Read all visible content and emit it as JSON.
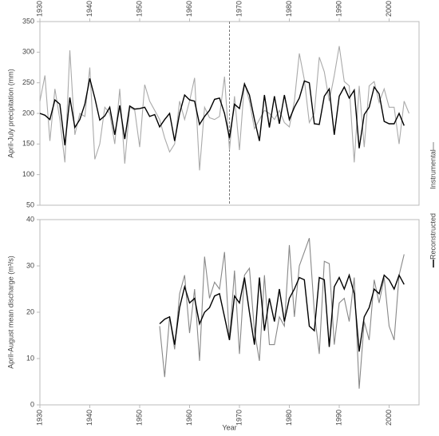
{
  "chart_data": [
    {
      "type": "line",
      "ylabel": "April-July precipitation (mm)",
      "x_label_position": "top",
      "ylim": [
        50,
        350
      ],
      "yticks": [
        50,
        100,
        150,
        200,
        250,
        300,
        350
      ],
      "xlim": [
        1930,
        2006
      ],
      "xticks": [
        1930,
        1940,
        1950,
        1960,
        1970,
        1980,
        1990,
        2000
      ],
      "vline": 1968,
      "series": [
        {
          "name": "Reconstructed",
          "color": "#000000",
          "x": [
            1930,
            1931,
            1932,
            1933,
            1934,
            1935,
            1936,
            1937,
            1938,
            1939,
            1940,
            1941,
            1942,
            1943,
            1944,
            1945,
            1946,
            1947,
            1948,
            1949,
            1950,
            1951,
            1952,
            1953,
            1954,
            1955,
            1956,
            1957,
            1958,
            1959,
            1960,
            1961,
            1962,
            1963,
            1964,
            1965,
            1966,
            1967,
            1968,
            1969,
            1970,
            1971,
            1972,
            1973,
            1974,
            1975,
            1976,
            1977,
            1978,
            1979,
            1980,
            1981,
            1982,
            1983,
            1984,
            1985,
            1986,
            1987,
            1988,
            1989,
            1990,
            1991,
            1992,
            1993,
            1994,
            1995,
            1996,
            1997,
            1998,
            1999,
            2000,
            2001,
            2002,
            2003
          ],
          "values": [
            200,
            197,
            190,
            222,
            215,
            148,
            226,
            177,
            190,
            215,
            257,
            225,
            189,
            196,
            210,
            165,
            213,
            158,
            212,
            207,
            208,
            210,
            195,
            198,
            178,
            190,
            200,
            155,
            200,
            230,
            222,
            220,
            182,
            195,
            205,
            223,
            225,
            200,
            160,
            215,
            208,
            248,
            230,
            190,
            155,
            230,
            177,
            228,
            183,
            230,
            190,
            210,
            225,
            253,
            250,
            183,
            182,
            228,
            240,
            165,
            228,
            243,
            225,
            238,
            143,
            198,
            210,
            243,
            232,
            187,
            183,
            183,
            200,
            180
          ]
        },
        {
          "name": "Instrumental",
          "color": "#aaaaaa",
          "x": [
            1930,
            1931,
            1932,
            1933,
            1934,
            1935,
            1936,
            1937,
            1938,
            1939,
            1940,
            1941,
            1942,
            1943,
            1944,
            1945,
            1946,
            1947,
            1948,
            1949,
            1950,
            1951,
            1952,
            1953,
            1954,
            1955,
            1956,
            1957,
            1958,
            1959,
            1960,
            1961,
            1962,
            1963,
            1964,
            1965,
            1966,
            1967,
            1968,
            1969,
            1970,
            1971,
            1972,
            1973,
            1974,
            1975,
            1976,
            1977,
            1978,
            1979,
            1980,
            1981,
            1982,
            1983,
            1984,
            1985,
            1986,
            1987,
            1988,
            1989,
            1990,
            1991,
            1992,
            1993,
            1994,
            1995,
            1996,
            1997,
            1998,
            1999,
            2000,
            2001,
            2002,
            2003,
            2004
          ],
          "values": [
            220,
            262,
            155,
            240,
            190,
            120,
            303,
            165,
            200,
            195,
            275,
            125,
            150,
            210,
            200,
            150,
            240,
            118,
            210,
            205,
            145,
            247,
            220,
            205,
            190,
            160,
            137,
            150,
            220,
            190,
            220,
            258,
            107,
            210,
            193,
            190,
            195,
            260,
            140,
            228,
            140,
            250,
            220,
            175,
            190,
            205,
            200,
            190,
            205,
            185,
            178,
            220,
            298,
            255,
            185,
            200,
            292,
            268,
            220,
            262,
            310,
            252,
            245,
            120,
            245,
            145,
            245,
            252,
            218,
            240,
            210,
            210,
            150,
            220,
            200
          ]
        }
      ]
    },
    {
      "type": "line",
      "ylabel": "April-August mean discharge (m³/s)",
      "xlabel": "Year",
      "x_label_position": "bottom",
      "ylim": [
        0,
        40
      ],
      "yticks": [
        0,
        10,
        20,
        30,
        40
      ],
      "xlim": [
        1930,
        2006
      ],
      "xticks": [
        1930,
        1940,
        1950,
        1960,
        1970,
        1980,
        1990,
        2000
      ],
      "series": [
        {
          "color": "#000000",
          "x": [
            1954,
            1955,
            1956,
            1957,
            1958,
            1959,
            1960,
            1961,
            1962,
            1963,
            1964,
            1965,
            1966,
            1967,
            1968,
            1969,
            1970,
            1971,
            1972,
            1973,
            1974,
            1975,
            1976,
            1977,
            1978,
            1979,
            1980,
            1981,
            1982,
            1983,
            1984,
            1985,
            1986,
            1987,
            1988,
            1989,
            1990,
            1991,
            1992,
            1993,
            1994,
            1995,
            1996,
            1997,
            1998,
            1999,
            2000,
            2001,
            2002,
            2003
          ],
          "values": [
            17.5,
            18.5,
            19,
            13,
            21,
            25.5,
            22,
            23,
            17.5,
            20,
            21,
            23.5,
            24,
            19,
            14,
            23.5,
            22,
            27.5,
            20,
            13,
            27.5,
            16,
            23,
            18,
            25,
            18,
            23,
            25,
            27.5,
            27,
            17,
            16,
            27.5,
            27,
            12.5,
            25.5,
            27.5,
            25,
            28,
            24,
            11.5,
            19,
            21,
            25,
            24,
            28,
            27,
            25,
            28,
            26
          ]
        },
        {
          "color": "#888888",
          "x": [
            1954,
            1955,
            1956,
            1957,
            1958,
            1959,
            1960,
            1961,
            1962,
            1963,
            1964,
            1965,
            1966,
            1967,
            1968,
            1969,
            1970,
            1971,
            1972,
            1973,
            1974,
            1975,
            1976,
            1977,
            1978,
            1979,
            1980,
            1981,
            1982,
            1983,
            1984,
            1985,
            1986,
            1987,
            1988,
            1989,
            1990,
            1991,
            1992,
            1993,
            1994,
            1995,
            1996,
            1997,
            1998,
            1999,
            2000,
            2001,
            2002,
            2003
          ],
          "values": [
            17,
            6,
            19,
            12,
            24,
            28,
            15.5,
            25,
            9.5,
            32,
            23,
            26.5,
            25,
            33,
            14,
            29,
            11,
            28,
            29.5,
            16,
            9.5,
            28,
            13,
            13,
            19,
            17,
            34.5,
            19,
            30,
            33,
            36,
            20,
            11,
            31,
            30.5,
            13,
            22,
            23,
            18,
            27.5,
            3.5,
            18,
            14,
            27,
            22,
            27.5,
            17,
            14,
            28,
            32.5
          ]
        }
      ]
    }
  ]
}
